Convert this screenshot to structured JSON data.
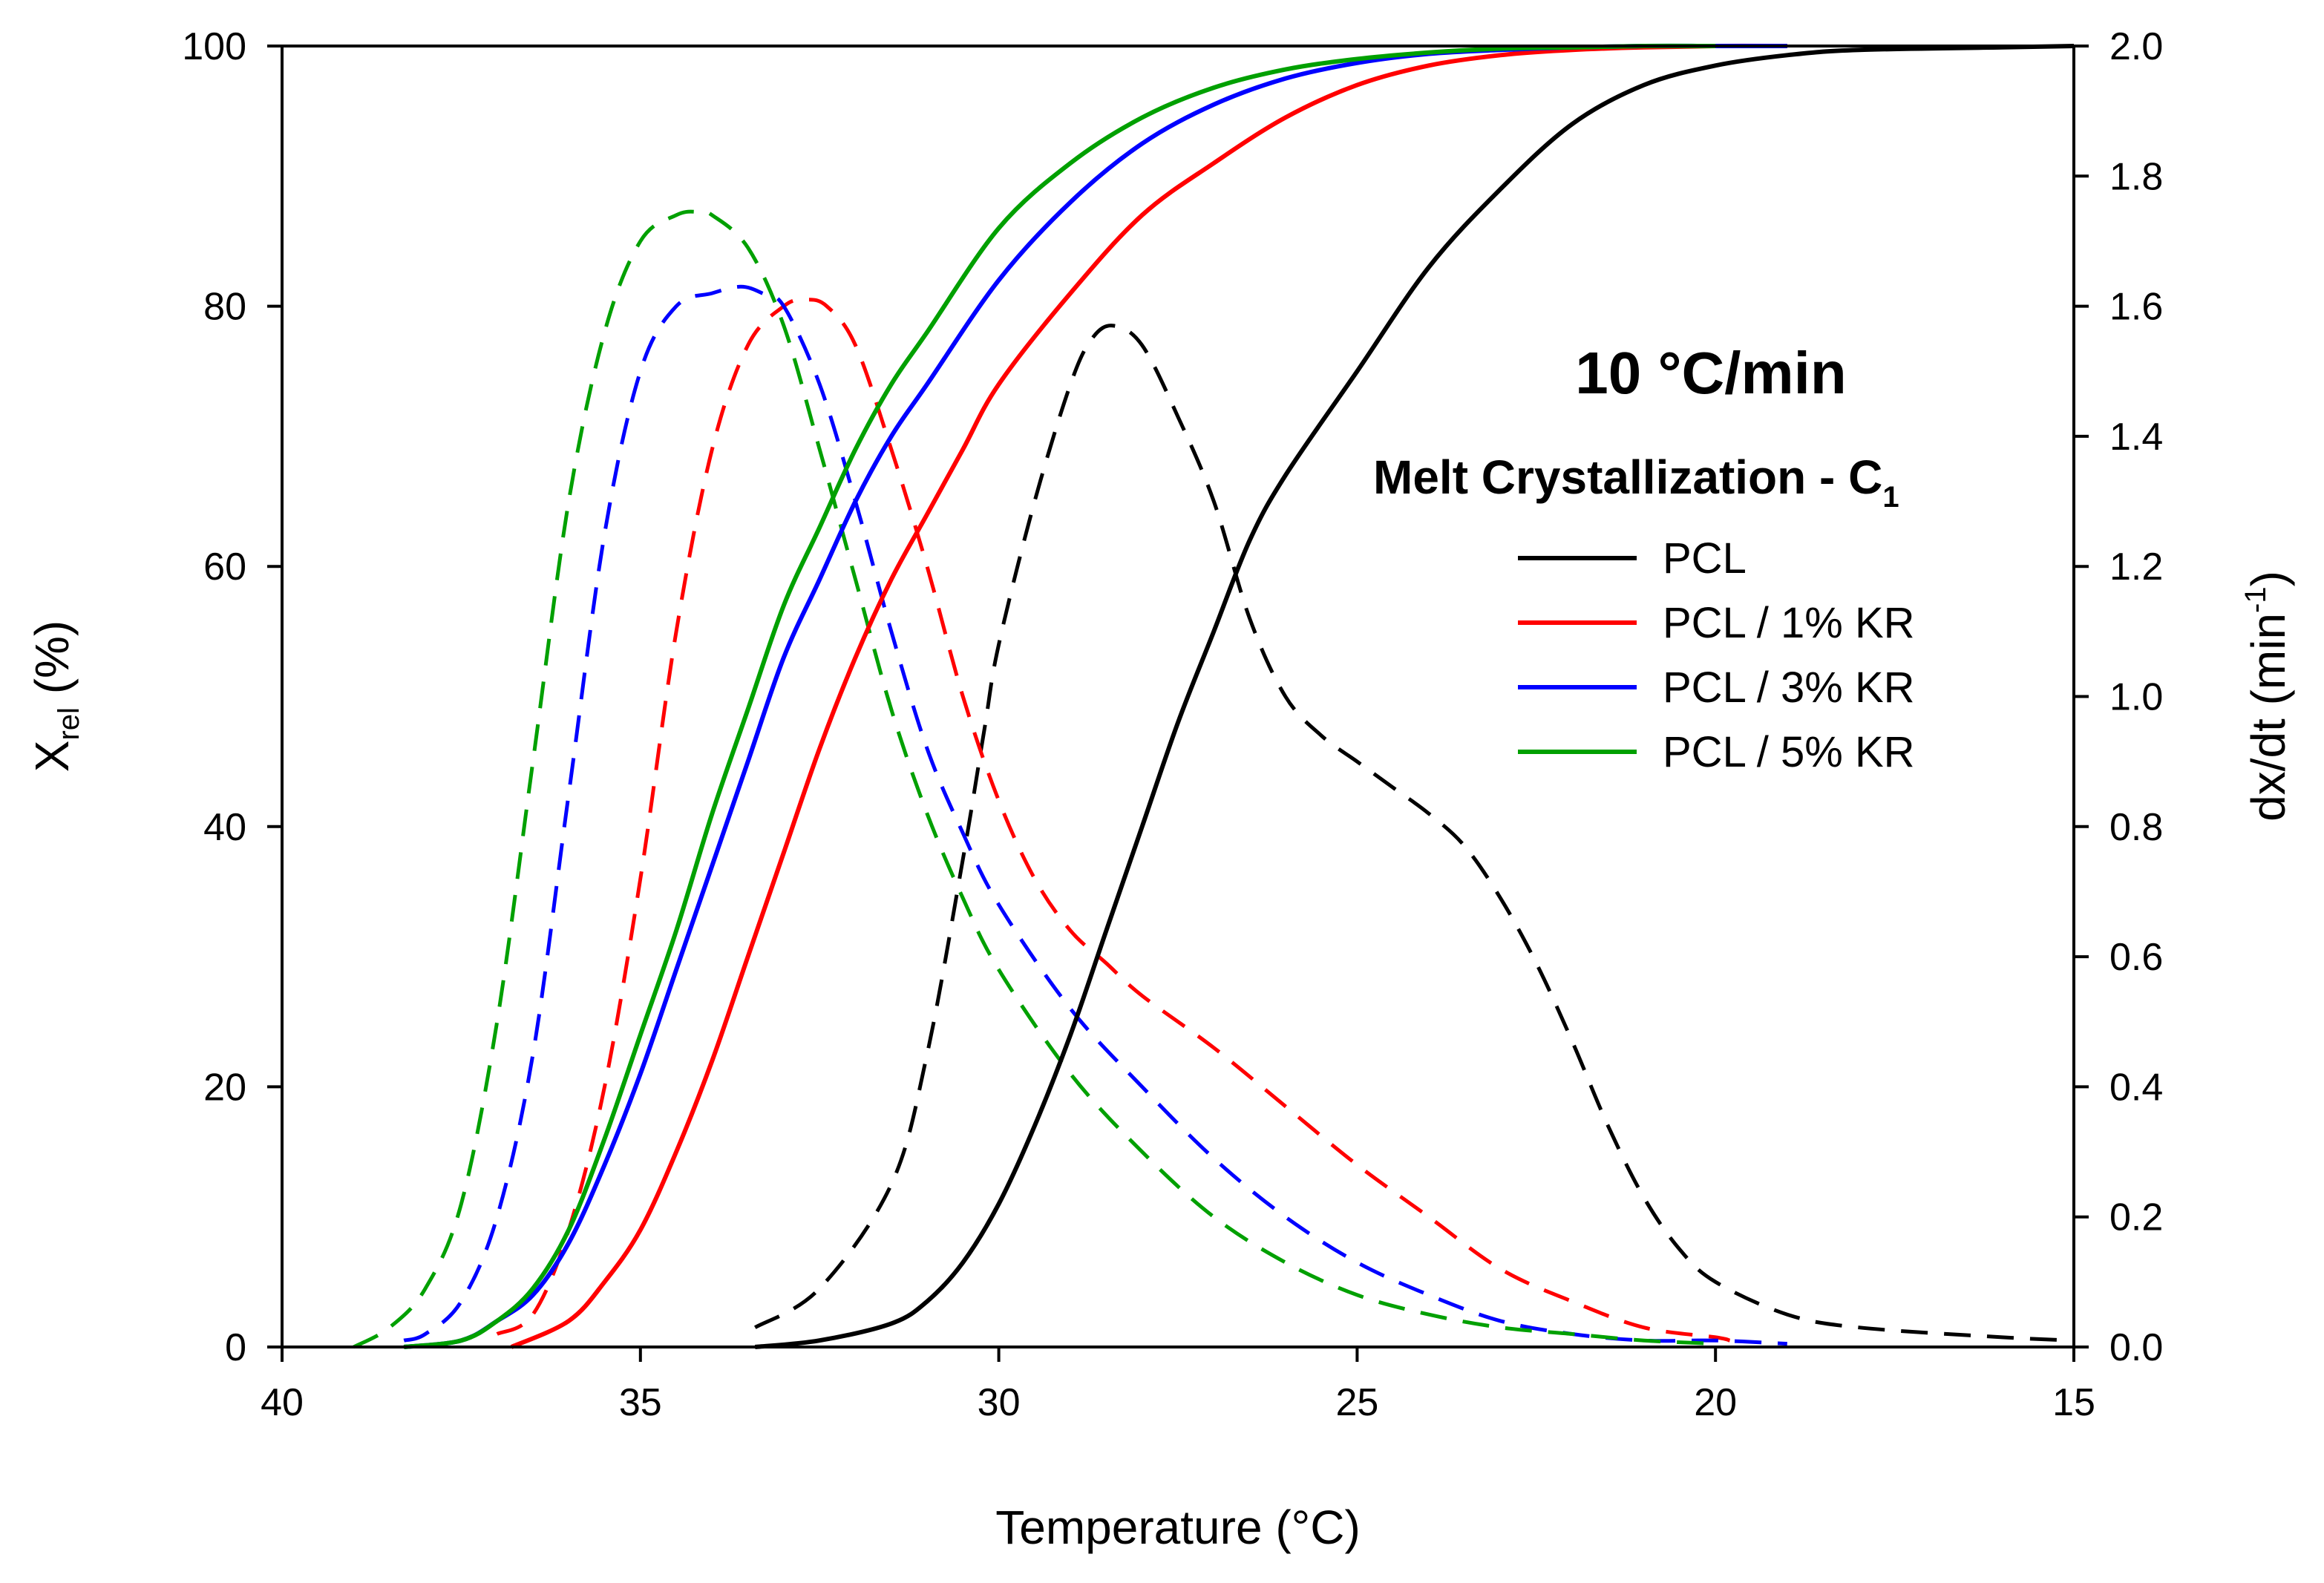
{
  "chart_data": {
    "type": "line",
    "xlabel": "Temperature (°C)",
    "ylabel": {
      "main": "X",
      "sub": "rel",
      "suffix": " (%)"
    },
    "y2label": {
      "main": "dx/dt (min",
      "sup": "-1",
      "suffix": ")"
    },
    "xlim": [
      40,
      15
    ],
    "ylim": [
      0,
      100
    ],
    "y2lim": [
      0.0,
      2.0
    ],
    "x_ticks": [
      "40",
      "35",
      "30",
      "25",
      "20",
      "15"
    ],
    "y_ticks": [
      "0",
      "20",
      "40",
      "60",
      "80",
      "100"
    ],
    "y2_ticks": [
      "0.0",
      "0.2",
      "0.4",
      "0.6",
      "0.8",
      "1.0",
      "1.2",
      "1.4",
      "1.6",
      "1.8",
      "2.0"
    ],
    "annotation": {
      "rate": "10 °C/min",
      "method_main": "Melt Crystallization - C",
      "method_sub": "1"
    },
    "legend": [
      {
        "name": "PCL",
        "color": "#000000"
      },
      {
        "name": "PCL / 1% KR",
        "color": "#ff0000"
      },
      {
        "name": "PCL / 3% KR",
        "color": "#0000ff"
      },
      {
        "name": "PCL / 5% KR",
        "color": "#00a000"
      }
    ],
    "series": [
      {
        "name": "PCL",
        "color": "#000000",
        "xrel": {
          "x": [
            33.4,
            32.5,
            31.5,
            31.0,
            30.5,
            30.0,
            29.5,
            29.0,
            28.5,
            28.0,
            27.5,
            27.0,
            26.5,
            26.0,
            25.0,
            24.0,
            23.0,
            22.0,
            21.0,
            20.0,
            19.0,
            18.0,
            16.0,
            15.0
          ],
          "y": [
            0,
            0.5,
            1.8,
            3.5,
            6.5,
            11,
            17,
            24,
            32,
            40,
            48,
            55,
            62,
            67,
            75,
            83,
            89,
            94,
            97,
            98.5,
            99.3,
            99.7,
            99.9,
            100
          ]
        },
        "rate": {
          "x": [
            33.4,
            32.5,
            31.5,
            31.0,
            30.5,
            30.2,
            30.0,
            29.5,
            29.0,
            28.7,
            28.4,
            28.0,
            27.5,
            27.0,
            26.5,
            26.0,
            25.5,
            25.0,
            24.5,
            24.0,
            23.5,
            23.0,
            22.5,
            22.0,
            21.5,
            21.0,
            20.5,
            20.0,
            19.0,
            18.0,
            16.0,
            15.0
          ],
          "y": [
            0.03,
            0.09,
            0.25,
            0.45,
            0.75,
            0.95,
            1.08,
            1.3,
            1.48,
            1.55,
            1.57,
            1.54,
            1.43,
            1.3,
            1.12,
            1.0,
            0.94,
            0.9,
            0.86,
            0.82,
            0.77,
            0.69,
            0.59,
            0.47,
            0.34,
            0.23,
            0.15,
            0.1,
            0.05,
            0.03,
            0.015,
            0.01
          ]
        }
      },
      {
        "name": "PCL / 1% KR",
        "color": "#ff0000",
        "xrel": {
          "x": [
            36.8,
            36.0,
            35.5,
            35.0,
            34.5,
            34.0,
            33.5,
            33.0,
            32.5,
            32.0,
            31.5,
            31.0,
            30.5,
            30.0,
            29.0,
            28.0,
            27.0,
            26.0,
            25.0,
            24.0,
            23.0,
            22.0,
            21.0,
            20.0,
            19.0
          ],
          "y": [
            0,
            2,
            5,
            9,
            15,
            22,
            30,
            38,
            46,
            53,
            59,
            64,
            69,
            74,
            81,
            87,
            91,
            94.5,
            97,
            98.5,
            99.3,
            99.7,
            99.9,
            100,
            100
          ]
        },
        "rate": {
          "x": [
            37.0,
            36.5,
            36.0,
            35.5,
            35.0,
            34.5,
            34.0,
            33.5,
            33.0,
            32.7,
            32.4,
            32.0,
            31.5,
            31.0,
            30.5,
            30.0,
            29.5,
            29.0,
            28.5,
            28.0,
            27.0,
            26.0,
            25.0,
            24.0,
            23.0,
            22.0,
            21.0,
            20.0,
            19.8
          ],
          "y": [
            0.02,
            0.05,
            0.18,
            0.4,
            0.72,
            1.1,
            1.38,
            1.54,
            1.6,
            1.61,
            1.6,
            1.54,
            1.38,
            1.2,
            1.0,
            0.84,
            0.72,
            0.64,
            0.59,
            0.54,
            0.46,
            0.37,
            0.28,
            0.2,
            0.12,
            0.07,
            0.03,
            0.015,
            0.01
          ]
        }
      },
      {
        "name": "PCL / 3% KR",
        "color": "#0000ff",
        "xrel": {
          "x": [
            38.3,
            37.5,
            37.0,
            36.5,
            36.0,
            35.5,
            35.0,
            34.5,
            34.0,
            33.5,
            33.0,
            32.5,
            32.0,
            31.5,
            31.0,
            30.0,
            29.0,
            28.0,
            27.0,
            26.0,
            25.0,
            24.0,
            23.0,
            22.0,
            21.0,
            20.0,
            19.0
          ],
          "y": [
            0,
            0.5,
            2,
            4,
            8,
            14,
            21,
            29,
            37,
            45,
            53,
            59,
            65,
            70,
            74,
            82,
            88,
            92.5,
            95.5,
            97.5,
            98.7,
            99.4,
            99.7,
            99.9,
            100,
            100,
            100
          ]
        },
        "rate": {
          "x": [
            38.3,
            38.0,
            37.5,
            37.0,
            36.5,
            36.0,
            35.5,
            35.0,
            34.5,
            34.0,
            33.6,
            33.3,
            33.0,
            32.5,
            32.0,
            31.5,
            31.0,
            30.5,
            30.0,
            29.0,
            28.0,
            27.0,
            26.0,
            25.0,
            24.0,
            23.0,
            22.0,
            21.0,
            20.0,
            19.0
          ],
          "y": [
            0.01,
            0.02,
            0.07,
            0.2,
            0.45,
            0.85,
            1.25,
            1.5,
            1.6,
            1.62,
            1.63,
            1.62,
            1.6,
            1.48,
            1.3,
            1.1,
            0.92,
            0.79,
            0.68,
            0.52,
            0.4,
            0.29,
            0.2,
            0.13,
            0.08,
            0.04,
            0.02,
            0.01,
            0.01,
            0.005
          ]
        }
      },
      {
        "name": "PCL / 5% KR",
        "color": "#00a000",
        "xrel": {
          "x": [
            38.3,
            37.5,
            37.0,
            36.5,
            36.0,
            35.5,
            35.0,
            34.5,
            34.0,
            33.5,
            33.0,
            32.5,
            32.0,
            31.5,
            31.0,
            30.0,
            29.0,
            28.0,
            27.0,
            26.0,
            25.0,
            24.0,
            23.0,
            22.0,
            21.0,
            20.0
          ],
          "y": [
            0,
            0.5,
            2,
            4.5,
            9,
            16,
            24,
            32,
            41,
            49,
            57,
            63,
            69,
            74,
            78,
            86,
            91,
            94.5,
            96.8,
            98.2,
            99,
            99.5,
            99.8,
            99.9,
            100,
            100
          ]
        },
        "rate": {
          "x": [
            39.0,
            38.5,
            38.0,
            37.5,
            37.0,
            36.5,
            36.0,
            35.5,
            35.0,
            34.5,
            34.2,
            34.0,
            33.5,
            33.0,
            32.5,
            32.0,
            31.5,
            31.0,
            30.5,
            30.0,
            29.0,
            28.0,
            27.0,
            26.0,
            25.0,
            24.0,
            23.0,
            22.0,
            21.0,
            20.0
          ],
          "y": [
            0.0,
            0.03,
            0.09,
            0.22,
            0.5,
            0.9,
            1.3,
            1.56,
            1.7,
            1.74,
            1.745,
            1.74,
            1.69,
            1.57,
            1.38,
            1.18,
            0.98,
            0.82,
            0.69,
            0.58,
            0.42,
            0.3,
            0.2,
            0.13,
            0.08,
            0.05,
            0.03,
            0.02,
            0.01,
            0.005
          ]
        }
      }
    ]
  }
}
